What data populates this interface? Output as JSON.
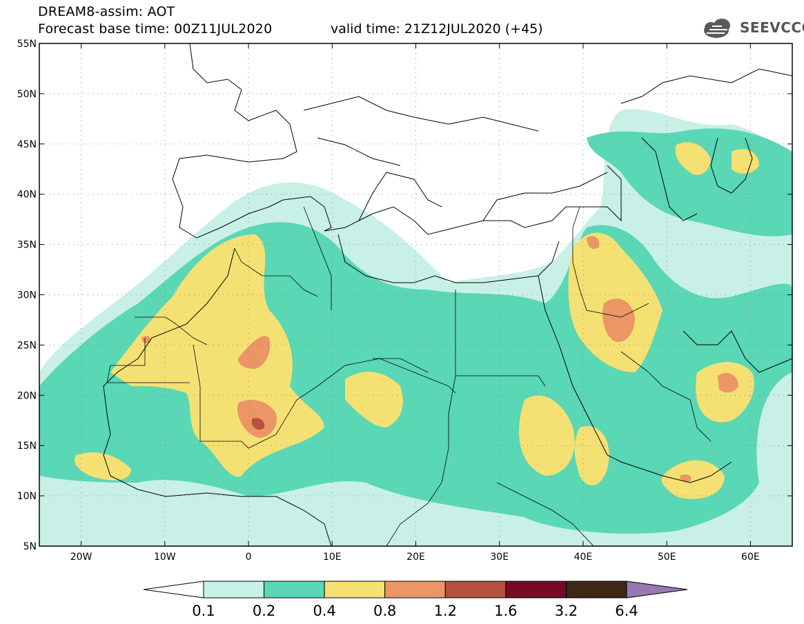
{
  "title": {
    "line1": "DREAM8-assim: AOT",
    "line2": "Forecast base time: 00Z11JUL2020",
    "valid": "valid time: 21Z12JUL2020 (+45)"
  },
  "logo": {
    "text": "SEEVCCC",
    "icon": "cloud-icon"
  },
  "axes": {
    "lon_range": [
      -25,
      65
    ],
    "lat_range": [
      5,
      55
    ],
    "lat_ticks": [
      "5N",
      "10N",
      "15N",
      "20N",
      "25N",
      "30N",
      "35N",
      "40N",
      "45N",
      "50N",
      "55N"
    ],
    "lon_ticks": [
      "20W",
      "10W",
      "0",
      "10E",
      "20E",
      "30E",
      "40E",
      "50E",
      "60E"
    ],
    "grid": "dotted"
  },
  "colorbar": {
    "labels": [
      "0.1",
      "0.2",
      "0.4",
      "0.8",
      "1.2",
      "1.6",
      "3.2",
      "6.4"
    ],
    "colors": [
      "#c8f0e6",
      "#5ad7b4",
      "#f5e173",
      "#eb9664",
      "#b4503c",
      "#780a28",
      "#3c2814",
      "#9678b4"
    ],
    "low_color": "#ffffff"
  }
}
